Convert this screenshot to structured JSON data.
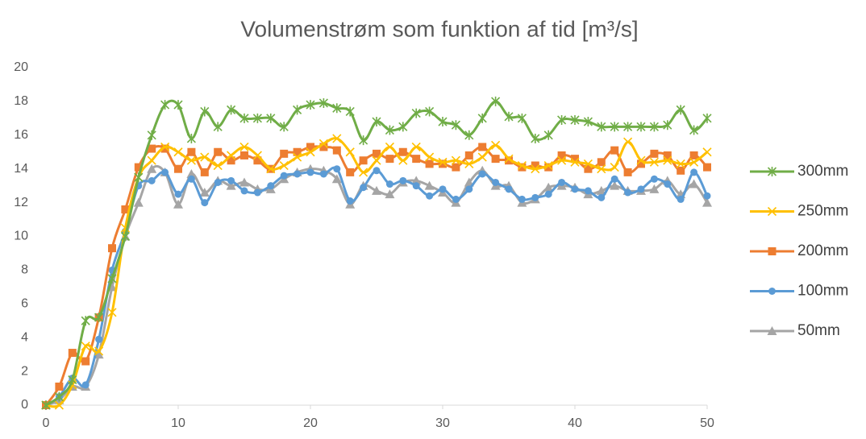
{
  "chart_data": {
    "type": "line",
    "title": "Volumenstrøm som funktion af tid [m³/s]",
    "x": [
      0,
      1,
      2,
      3,
      4,
      5,
      6,
      7,
      8,
      9,
      10,
      11,
      12,
      13,
      14,
      15,
      16,
      17,
      18,
      19,
      20,
      21,
      22,
      23,
      24,
      25,
      26,
      27,
      28,
      29,
      30,
      31,
      32,
      33,
      34,
      35,
      36,
      37,
      38,
      39,
      40,
      41,
      42,
      43,
      44,
      45,
      46,
      47,
      48,
      49,
      50
    ],
    "xlim": [
      0,
      50
    ],
    "xticks": [
      0,
      10,
      20,
      30,
      40,
      50
    ],
    "ylim": [
      0,
      20
    ],
    "yticks": [
      0,
      2,
      4,
      6,
      8,
      10,
      12,
      14,
      16,
      18,
      20
    ],
    "grid": false,
    "smooth": true,
    "legend": "right",
    "series": [
      {
        "name": "300mm",
        "color": "#70ad47",
        "marker": "star",
        "values": [
          0,
          0.5,
          1.5,
          5,
          5.2,
          7.5,
          10,
          13.5,
          16,
          17.8,
          17.8,
          15.8,
          17.4,
          16.5,
          17.5,
          17,
          17,
          17,
          16.5,
          17.5,
          17.8,
          17.9,
          17.6,
          17.4,
          15.7,
          16.8,
          16.3,
          16.5,
          17.3,
          17.4,
          16.8,
          16.6,
          16,
          17,
          18,
          17.1,
          17,
          15.8,
          16,
          16.9,
          16.9,
          16.8,
          16.5,
          16.5,
          16.5,
          16.5,
          16.5,
          16.6,
          17.5,
          16.3,
          17
        ]
      },
      {
        "name": "250mm",
        "color": "#ffc000",
        "marker": "x",
        "values": [
          0,
          0,
          1.2,
          3.5,
          3.2,
          5.5,
          10.5,
          13.5,
          14.5,
          15.3,
          15,
          14.5,
          14.7,
          14.2,
          14.8,
          15.3,
          14.8,
          14,
          14.2,
          14.7,
          15,
          15.5,
          15.8,
          15,
          13.8,
          14.5,
          15.3,
          14.5,
          15.3,
          14.7,
          14.4,
          14.5,
          14.3,
          14.7,
          15.4,
          14.6,
          14.2,
          14,
          14.2,
          14.5,
          14.4,
          14.3,
          14,
          14.1,
          15.6,
          14.5,
          14.4,
          14.5,
          14.3,
          14.4,
          15
        ]
      },
      {
        "name": "200mm",
        "color": "#ed7d31",
        "marker": "square",
        "values": [
          0,
          1.1,
          3.1,
          2.6,
          5.2,
          9.3,
          11.6,
          14.1,
          15.2,
          15.2,
          14,
          15,
          13.8,
          15,
          14.5,
          14.8,
          14.5,
          14,
          14.9,
          15,
          15.3,
          15.3,
          15.1,
          13.8,
          14.5,
          14.9,
          14.6,
          15,
          14.6,
          14.3,
          14.3,
          14.1,
          14.8,
          15.3,
          14.6,
          14.5,
          14.1,
          14.2,
          14.1,
          14.8,
          14.6,
          14,
          14.4,
          15.1,
          13.8,
          14.3,
          14.9,
          14.8,
          13.9,
          14.8,
          14.1
        ]
      },
      {
        "name": "100mm",
        "color": "#5b9bd5",
        "marker": "circle",
        "values": [
          0,
          0.5,
          1.6,
          1.2,
          3.9,
          8,
          10.3,
          13,
          13.3,
          13.8,
          12.5,
          13.4,
          12,
          13.2,
          13.3,
          12.7,
          12.6,
          13,
          13.6,
          13.7,
          13.8,
          13.7,
          14,
          12.1,
          12.9,
          13.9,
          13.1,
          13.3,
          13,
          12.4,
          12.8,
          12.2,
          12.8,
          13.7,
          13.2,
          12.8,
          12.2,
          12.3,
          12.5,
          13.2,
          12.8,
          12.7,
          12.3,
          13.4,
          12.6,
          12.8,
          13.4,
          13.1,
          12.2,
          13.8,
          12.4
        ]
      },
      {
        "name": "50mm",
        "color": "#a5a5a5",
        "marker": "triangle",
        "values": [
          0,
          0.3,
          1.1,
          1.1,
          3,
          7,
          10,
          12,
          14,
          13.8,
          11.9,
          13.7,
          12.6,
          13.3,
          13,
          13.2,
          12.8,
          12.8,
          13.4,
          13.8,
          14,
          13.9,
          13.4,
          11.9,
          13,
          12.7,
          12.5,
          13.2,
          13.3,
          13,
          12.6,
          12,
          13.2,
          13.9,
          13,
          13,
          12,
          12.2,
          12.9,
          13,
          12.9,
          12.5,
          12.7,
          13,
          12.7,
          12.7,
          12.8,
          13.3,
          12.5,
          13.1,
          12
        ]
      }
    ]
  }
}
